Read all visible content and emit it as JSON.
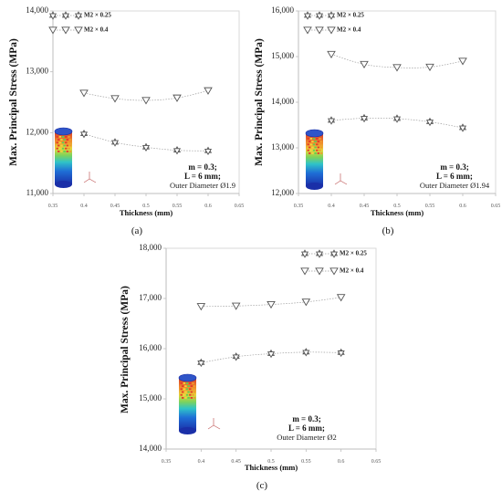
{
  "chart_data": [
    {
      "type": "line",
      "panel_label": "(a)",
      "xlabel": "Thickness (mm)",
      "ylabel": "Max. Principal Stress (MPa)",
      "xlim": [
        0.35,
        0.65
      ],
      "ylim": [
        11000,
        14000
      ],
      "x_ticks": [
        "0.35",
        "0.4",
        "0.45",
        "0.5",
        "0.55",
        "0.6",
        "0.65"
      ],
      "y_ticks": [
        "11,000",
        "12,000",
        "13,000",
        "14,000"
      ],
      "legend_position": "top-left",
      "grid": false,
      "series": [
        {
          "name": "M2 × 0.25",
          "marker": "hexagram",
          "x": [
            0.4,
            0.45,
            0.5,
            0.55,
            0.6
          ],
          "values": [
            11980,
            11840,
            11760,
            11710,
            11700
          ]
        },
        {
          "name": "M2 × 0.4",
          "marker": "triangle-down",
          "x": [
            0.4,
            0.45,
            0.5,
            0.55,
            0.6
          ],
          "values": [
            12650,
            12560,
            12530,
            12570,
            12690
          ]
        }
      ],
      "annotations": [
        "m = 0.3;",
        "L = 6 mm;",
        "Outer Diameter Ø1.9"
      ]
    },
    {
      "type": "line",
      "panel_label": "(b)",
      "xlabel": "Thickness (mm)",
      "ylabel": "Max. Principal Stress (MPa)",
      "xlim": [
        0.35,
        0.65
      ],
      "ylim": [
        12000,
        16000
      ],
      "x_ticks": [
        "0.35",
        "0.4",
        "0.45",
        "0.5",
        "0.55",
        "0.6",
        "0.65"
      ],
      "y_ticks": [
        "12,000",
        "13,000",
        "14,000",
        "15,000",
        "16,000"
      ],
      "legend_position": "top-left",
      "grid": false,
      "series": [
        {
          "name": "M2 × 0.25",
          "marker": "hexagram",
          "x": [
            0.4,
            0.45,
            0.5,
            0.55,
            0.6
          ],
          "values": [
            13600,
            13650,
            13640,
            13570,
            13440
          ]
        },
        {
          "name": "M2 × 0.4",
          "marker": "triangle-down",
          "x": [
            0.4,
            0.45,
            0.5,
            0.55,
            0.6
          ],
          "values": [
            15050,
            14830,
            14760,
            14770,
            14900
          ]
        }
      ],
      "annotations": [
        "m = 0.3;",
        "L = 6 mm;",
        "Outer Diameter Ø1.94"
      ]
    },
    {
      "type": "line",
      "panel_label": "(c)",
      "xlabel": "Thickness (mm)",
      "ylabel": "Max. Principal Stress (MPa)",
      "xlim": [
        0.35,
        0.65
      ],
      "ylim": [
        14000,
        18000
      ],
      "x_ticks": [
        "0.35",
        "0.4",
        "0.45",
        "0.5",
        "0.55",
        "0.6",
        "0.65"
      ],
      "y_ticks": [
        "14,000",
        "15,000",
        "16,000",
        "17,000",
        "18,000"
      ],
      "legend_position": "top-right",
      "grid": false,
      "series": [
        {
          "name": "M2 × 0.25",
          "marker": "hexagram",
          "x": [
            0.4,
            0.45,
            0.5,
            0.55,
            0.6
          ],
          "values": [
            15720,
            15840,
            15900,
            15930,
            15920
          ]
        },
        {
          "name": "M2 × 0.4",
          "marker": "triangle-down",
          "x": [
            0.4,
            0.45,
            0.5,
            0.55,
            0.6
          ],
          "values": [
            16840,
            16850,
            16880,
            16930,
            17020
          ]
        }
      ],
      "annotations": [
        "m = 0.3;",
        "L = 6 mm;",
        "Outer Diameter Ø2"
      ]
    }
  ],
  "colors": {
    "marker_stroke": "#555555",
    "trend_line": "#9e9e9e",
    "axis": "#d9d9d9",
    "text": "#111111"
  }
}
